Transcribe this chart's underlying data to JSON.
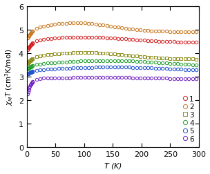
{
  "xlabel": "$T$ (K)",
  "ylabel": "$\\chi_{M}$$T$ (cm$^3$K/mol)",
  "xlim": [
    0,
    300
  ],
  "ylim": [
    0,
    6
  ],
  "xticks": [
    0,
    50,
    100,
    150,
    200,
    250,
    300
  ],
  "yticks": [
    0,
    1,
    2,
    3,
    4,
    5,
    6
  ],
  "series": [
    {
      "label": "1",
      "color": "#d42020",
      "marker": "o",
      "params": [
        4.18,
        4.5,
        4.68,
        4.45,
        100,
        0.08
      ]
    },
    {
      "label": "2",
      "color": "#c87820",
      "marker": "o",
      "params": [
        4.4,
        4.8,
        5.28,
        4.9,
        90,
        0.1
      ]
    },
    {
      "label": "3",
      "color": "#909020",
      "marker": "s",
      "params": [
        3.58,
        3.78,
        4.02,
        3.73,
        100,
        0.09
      ]
    },
    {
      "label": "4",
      "color": "#20a030",
      "marker": "o",
      "params": [
        3.38,
        3.52,
        3.68,
        3.4,
        140,
        0.08
      ]
    },
    {
      "label": "5",
      "color": "#2050d0",
      "marker": "o",
      "params": [
        3.08,
        3.22,
        3.4,
        3.18,
        150,
        0.08
      ]
    },
    {
      "label": "6",
      "color": "#7020c0",
      "marker": "o",
      "params": [
        2.05,
        2.72,
        2.96,
        2.88,
        130,
        0.2
      ]
    }
  ],
  "figsize": [
    3.04,
    2.53
  ],
  "dpi": 100
}
